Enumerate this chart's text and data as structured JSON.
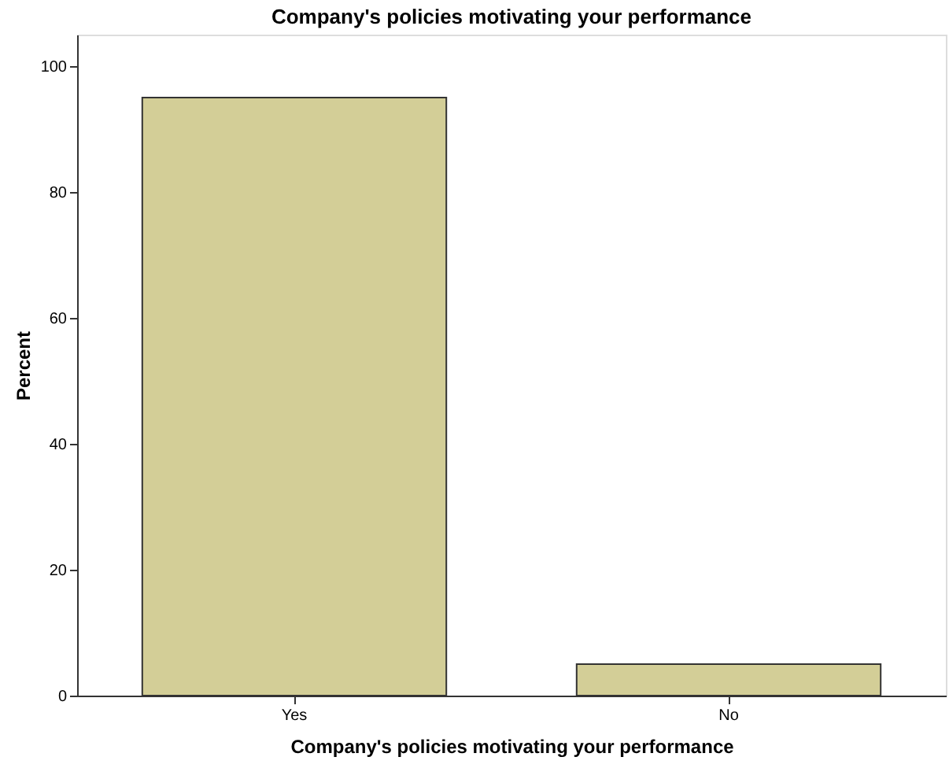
{
  "chart_data": {
    "type": "bar",
    "title": "Company's policies motivating your performance",
    "xlabel": "Company's policies motivating your performance",
    "ylabel": "Percent",
    "categories": [
      "Yes",
      "No"
    ],
    "values": [
      95,
      5
    ],
    "color": "#d3ce97",
    "ylim": [
      0,
      105
    ],
    "yticks": [
      0,
      20,
      40,
      60,
      80,
      100
    ],
    "grid": false
  }
}
